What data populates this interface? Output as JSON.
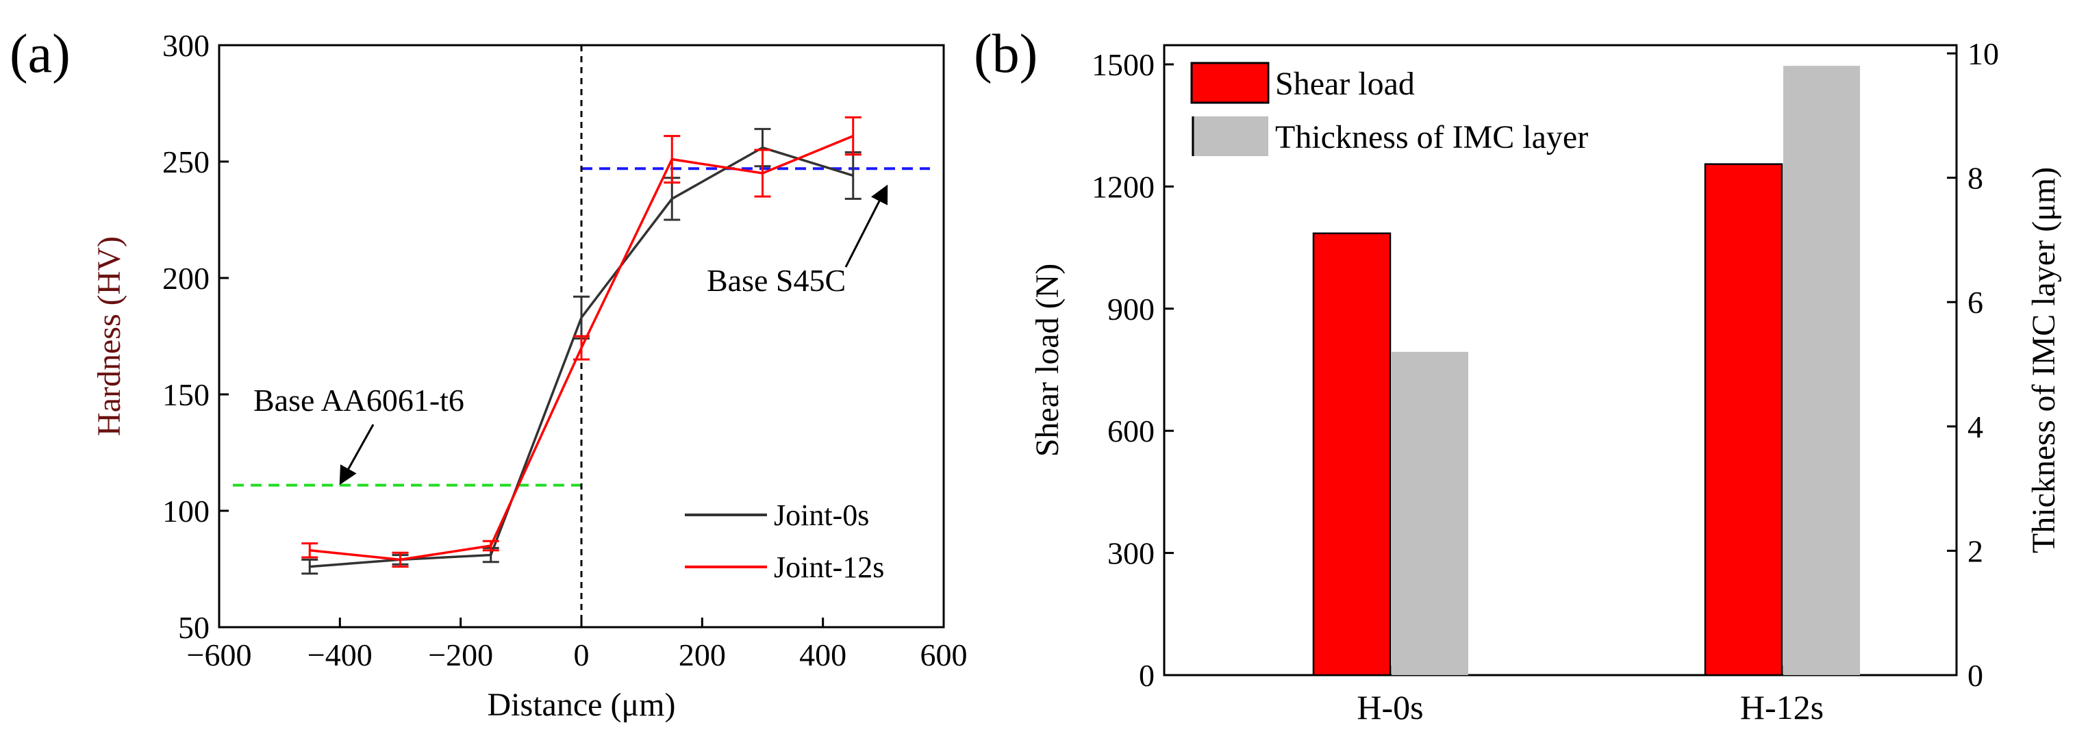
{
  "panels": {
    "a_label": "(a)",
    "b_label": "(b)"
  },
  "chart_data": [
    {
      "type": "line",
      "panel": "(a)",
      "title": "",
      "xlabel": "Distance (μm)",
      "ylabel": "Hardness (HV)",
      "xlim": [
        -600,
        600
      ],
      "ylim": [
        50,
        300
      ],
      "xticks": [
        -600,
        -400,
        -200,
        0,
        200,
        400,
        600
      ],
      "yticks": [
        50,
        100,
        150,
        200,
        250,
        300
      ],
      "xtick_labels": [
        "−600",
        "−400",
        "−200",
        "0",
        "200",
        "400",
        "600"
      ],
      "ytick_labels": [
        "50",
        "100",
        "150",
        "200",
        "250",
        "300"
      ],
      "legend_position": "bottom-right",
      "series": [
        {
          "name": "Joint-0s",
          "color": "#333333",
          "x": [
            -450,
            -300,
            -150,
            0,
            150,
            300,
            450
          ],
          "y": [
            76,
            79,
            81,
            183,
            234,
            256,
            244
          ],
          "err": [
            3,
            2,
            3,
            9,
            9,
            8,
            10
          ]
        },
        {
          "name": "Joint-12s",
          "color": "#ff0000",
          "x": [
            -450,
            -300,
            -150,
            0,
            150,
            300,
            450
          ],
          "y": [
            83,
            79,
            85,
            170,
            251,
            245,
            261
          ],
          "err": [
            3,
            3,
            2,
            5,
            10,
            10,
            8
          ]
        }
      ],
      "reference_lines": [
        {
          "name": "Base AA6061-t6",
          "y": 111,
          "x_range": [
            -600,
            0
          ],
          "color": "#22dd22"
        },
        {
          "name": "Base S45C",
          "y": 247,
          "x_range": [
            0,
            600
          ],
          "color": "#1a1aff"
        },
        {
          "name": "interface",
          "x": 0,
          "color": "#000000"
        }
      ],
      "annotations": {
        "aa6061": "Base AA6061-t6",
        "s45c": "Base S45C"
      }
    },
    {
      "type": "bar",
      "panel": "(b)",
      "title": "",
      "categories": [
        "H-0s",
        "H-12s"
      ],
      "xlabel": "",
      "ylabel": "Shear load (N)",
      "y2label": "Thickness of IMC layer (μm)",
      "ylim": [
        0,
        1500
      ],
      "y2lim": [
        0,
        10
      ],
      "yticks": [
        0,
        300,
        600,
        900,
        1200,
        1500
      ],
      "y2ticks": [
        0,
        2,
        4,
        6,
        8,
        10
      ],
      "ytick_labels": [
        "0",
        "300",
        "600",
        "900",
        "1200",
        "1500"
      ],
      "y2tick_labels": [
        "0",
        "2",
        "4",
        "6",
        "8",
        "10"
      ],
      "legend_position": "top-left",
      "series": [
        {
          "name": "Shear load",
          "axis": "left",
          "color": "#ff0000",
          "values": [
            1085,
            1255
          ]
        },
        {
          "name": "Thickness of IMC layer",
          "axis": "right",
          "color": "#c0c0c0",
          "values": [
            5.2,
            9.8
          ]
        }
      ]
    }
  ]
}
